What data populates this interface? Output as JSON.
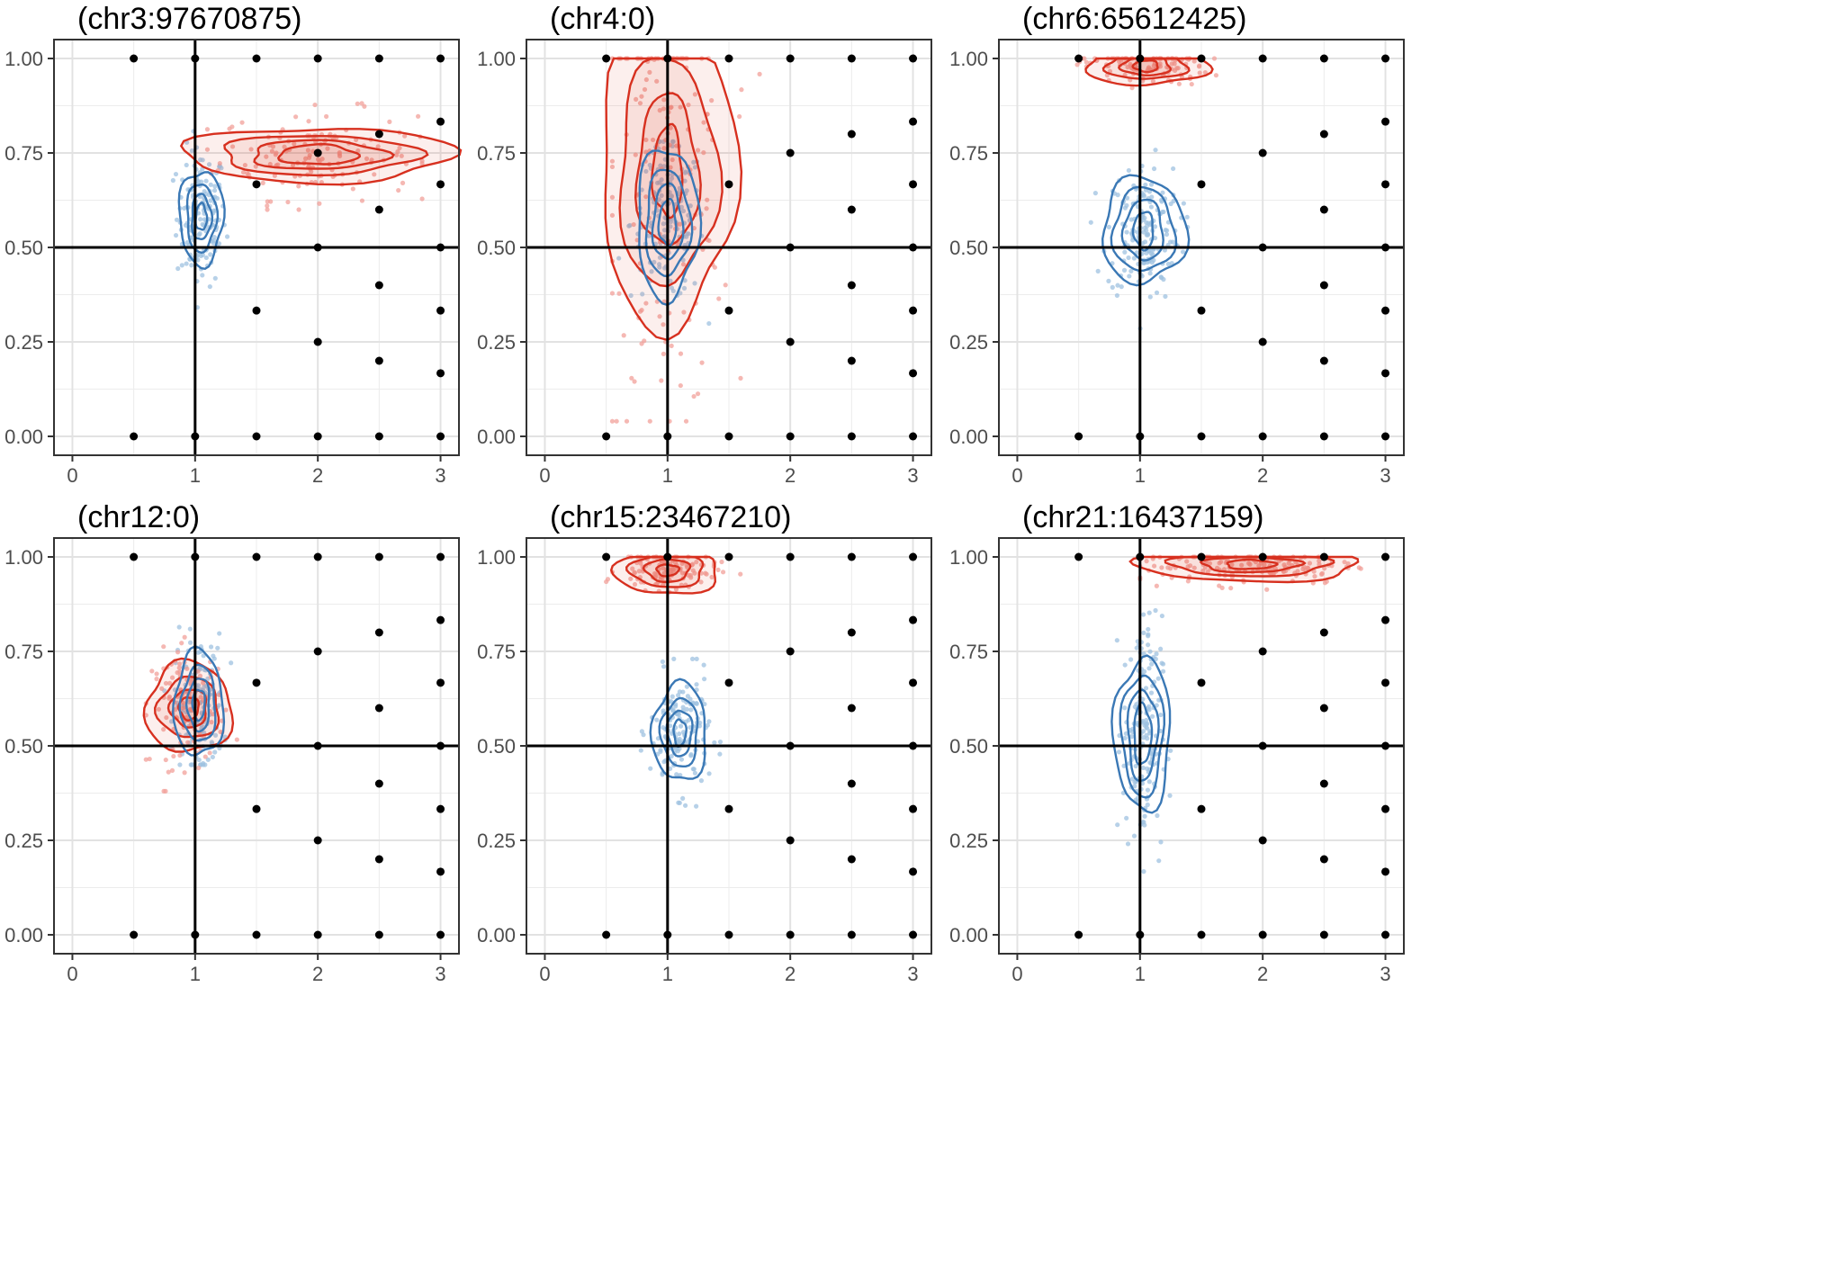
{
  "chart_data": {
    "type": "scatter",
    "xlim": [
      0,
      3
    ],
    "ylim": [
      0,
      1
    ],
    "xticks": [
      "0",
      "1",
      "2",
      "3"
    ],
    "yticks": [
      "0.00",
      "0.25",
      "0.50",
      "0.75",
      "1.00"
    ],
    "grid": true,
    "reference_lines": {
      "x": 1,
      "y": 0.5
    },
    "reference_points": [
      [
        0.5,
        0
      ],
      [
        0.5,
        1
      ],
      [
        1,
        0
      ],
      [
        1,
        1
      ],
      [
        1.5,
        0
      ],
      [
        1.5,
        1
      ],
      [
        1.5,
        0.333
      ],
      [
        1.5,
        0.667
      ],
      [
        2,
        0
      ],
      [
        2,
        1
      ],
      [
        2,
        0.25
      ],
      [
        2,
        0.5
      ],
      [
        2,
        0.75
      ],
      [
        2.5,
        0
      ],
      [
        2.5,
        1
      ],
      [
        2.5,
        0.2
      ],
      [
        2.5,
        0.4
      ],
      [
        2.5,
        0.6
      ],
      [
        2.5,
        0.8
      ],
      [
        3,
        0
      ],
      [
        3,
        1
      ],
      [
        3,
        0.167
      ],
      [
        3,
        0.333
      ],
      [
        3,
        0.5
      ],
      [
        3,
        0.667
      ],
      [
        3,
        0.833
      ]
    ],
    "colors": {
      "red": "#d7301f",
      "red_point": "#f2a09a",
      "blue": "#3a78b5",
      "blue_point": "#9fc2e0",
      "reference": "#000000"
    },
    "panels": [
      {
        "title": "(chr3:97670875)",
        "red": {
          "cx": 2.0,
          "cy": 0.745,
          "sx": 0.4,
          "sy": 0.045,
          "n": 140,
          "xr": [
            1.1,
            2.85
          ],
          "yr": [
            0.6,
            0.89
          ],
          "levels": [
            [
              1.1,
              0.072
            ],
            [
              0.8,
              0.052
            ],
            [
              0.55,
              0.038
            ],
            [
              0.32,
              0.026
            ]
          ]
        },
        "blue": {
          "cx": 1.05,
          "cy": 0.58,
          "sx": 0.1,
          "sy": 0.07,
          "n": 150,
          "xr": [
            0.55,
            1.4
          ],
          "yr": [
            0.3,
            0.87
          ],
          "levels": [
            [
              0.18,
              0.125
            ],
            [
              0.12,
              0.09
            ],
            [
              0.08,
              0.06
            ],
            [
              0.045,
              0.035
            ]
          ]
        }
      },
      {
        "title": "(chr4:0)",
        "red": {
          "cx": 1.0,
          "cy": 0.7,
          "sx": 0.25,
          "sy": 0.25,
          "n": 160,
          "xr": [
            0.55,
            1.75
          ],
          "yr": [
            0.04,
            1.0
          ],
          "levels": [
            [
              0.55,
              0.41
            ],
            [
              0.4,
              0.3
            ],
            [
              0.25,
              0.2
            ],
            [
              0.12,
              0.12
            ]
          ]
        },
        "blue": {
          "cx": 1.0,
          "cy": 0.565,
          "sx": 0.15,
          "sy": 0.08,
          "n": 150,
          "xr": [
            0.55,
            1.45
          ],
          "yr": [
            0.22,
            0.78
          ],
          "levels": [
            [
              0.25,
              0.2
            ],
            [
              0.18,
              0.14
            ],
            [
              0.12,
              0.1
            ],
            [
              0.07,
              0.06
            ]
          ]
        }
      },
      {
        "title": "(chr6:65612425)",
        "red": {
          "cx": 1.05,
          "cy": 0.98,
          "sx": 0.25,
          "sy": 0.02,
          "n": 120,
          "xr": [
            0.4,
            2.0
          ],
          "yr": [
            0.87,
            1.0
          ],
          "levels": [
            [
              0.5,
              0.05
            ],
            [
              0.33,
              0.035
            ],
            [
              0.2,
              0.025
            ],
            [
              0.1,
              0.015
            ]
          ]
        },
        "blue": {
          "cx": 1.03,
          "cy": 0.545,
          "sx": 0.15,
          "sy": 0.07,
          "n": 170,
          "xr": [
            0.6,
            1.55
          ],
          "yr": [
            0.2,
            0.8
          ],
          "levels": [
            [
              0.34,
              0.14
            ],
            [
              0.25,
              0.11
            ],
            [
              0.16,
              0.08
            ],
            [
              0.08,
              0.05
            ]
          ]
        }
      },
      {
        "title": "(chr12:0)",
        "red": {
          "cx": 0.95,
          "cy": 0.6,
          "sx": 0.15,
          "sy": 0.06,
          "n": 120,
          "xr": [
            0.6,
            1.7
          ],
          "yr": [
            0.38,
            0.82
          ],
          "levels": [
            [
              0.35,
              0.12
            ],
            [
              0.25,
              0.08
            ],
            [
              0.15,
              0.05
            ],
            [
              0.08,
              0.03
            ]
          ]
        },
        "blue": {
          "cx": 1.03,
          "cy": 0.61,
          "sx": 0.1,
          "sy": 0.07,
          "n": 150,
          "xr": [
            0.75,
            1.35
          ],
          "yr": [
            0.45,
            0.86
          ],
          "levels": [
            [
              0.2,
              0.14
            ],
            [
              0.14,
              0.1
            ],
            [
              0.09,
              0.07
            ],
            [
              0.05,
              0.04
            ]
          ]
        }
      },
      {
        "title": "(chr15:23467210)",
        "red": {
          "cx": 1.0,
          "cy": 0.965,
          "sx": 0.2,
          "sy": 0.02,
          "n": 120,
          "xr": [
            0.5,
            1.85
          ],
          "yr": [
            0.04,
            1.0
          ],
          "levels": [
            [
              0.42,
              0.065
            ],
            [
              0.3,
              0.045
            ],
            [
              0.18,
              0.03
            ],
            [
              0.09,
              0.015
            ]
          ]
        },
        "blue": {
          "cx": 1.1,
          "cy": 0.535,
          "sx": 0.12,
          "sy": 0.06,
          "n": 150,
          "xr": [
            0.65,
            1.65
          ],
          "yr": [
            0.33,
            0.73
          ],
          "levels": [
            [
              0.22,
              0.13
            ],
            [
              0.15,
              0.09
            ],
            [
              0.1,
              0.06
            ],
            [
              0.05,
              0.035
            ]
          ]
        }
      },
      {
        "title": "(chr21:16437159)",
        "red": {
          "cx": 1.9,
          "cy": 0.98,
          "sx": 0.45,
          "sy": 0.02,
          "n": 160,
          "xr": [
            1.0,
            2.8
          ],
          "yr": [
            0.9,
            1.0
          ],
          "levels": [
            [
              0.9,
              0.045
            ],
            [
              0.65,
              0.03
            ],
            [
              0.4,
              0.02
            ],
            [
              0.2,
              0.012
            ]
          ]
        },
        "blue": {
          "cx": 1.02,
          "cy": 0.53,
          "sx": 0.08,
          "sy": 0.12,
          "n": 170,
          "xr": [
            0.5,
            1.4
          ],
          "yr": [
            0.03,
            0.95
          ],
          "levels": [
            [
              0.23,
              0.2
            ],
            [
              0.17,
              0.16
            ],
            [
              0.12,
              0.12
            ],
            [
              0.07,
              0.08
            ]
          ]
        }
      }
    ]
  }
}
